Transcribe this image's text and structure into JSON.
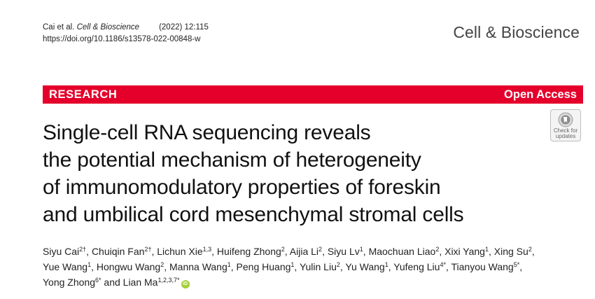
{
  "header": {
    "citation_authors": "Cai et al.",
    "citation_journal": "Cell & Bioscience",
    "citation_year_volume": "(2022) 12:115",
    "doi": "https://doi.org/10.1186/s13578-022-00848-w"
  },
  "journal_name": "Cell & Bioscience",
  "banner": {
    "section_label": "RESEARCH",
    "access_label": "Open Access",
    "color": "#e4002b"
  },
  "check_updates": {
    "line1": "Check for",
    "line2": "updates",
    "icon": "check-for-updates-icon"
  },
  "title_lines": [
    "Single-cell RNA sequencing reveals",
    "the potential mechanism of heterogeneity",
    "of immunomodulatory properties of foreskin",
    "and umbilical cord mesenchymal stromal cells"
  ],
  "authors": [
    [
      {
        "name": "Siyu Cai",
        "sup": "2†"
      },
      {
        "name": "Chuiqin Fan",
        "sup": "2†"
      },
      {
        "name": "Lichun Xie",
        "sup": "1,3"
      },
      {
        "name": "Huifeng Zhong",
        "sup": "2"
      },
      {
        "name": "Aijia Li",
        "sup": "2"
      },
      {
        "name": "Siyu Lv",
        "sup": "1"
      },
      {
        "name": "Maochuan Liao",
        "sup": "2"
      },
      {
        "name": "Xixi Yang",
        "sup": "1"
      },
      {
        "name": "Xing Su",
        "sup": "2"
      }
    ],
    [
      {
        "name": "Yue Wang",
        "sup": "1"
      },
      {
        "name": "Hongwu Wang",
        "sup": "2"
      },
      {
        "name": "Manna Wang",
        "sup": "1"
      },
      {
        "name": "Peng Huang",
        "sup": "1"
      },
      {
        "name": "Yulin Liu",
        "sup": "2"
      },
      {
        "name": "Yu Wang",
        "sup": "1"
      },
      {
        "name": "Yufeng Liu",
        "sup": "4*"
      },
      {
        "name": "Tianyou Wang",
        "sup": "5*"
      }
    ],
    [
      {
        "name": "Yong Zhong",
        "sup": "6*"
      },
      {
        "name": "Lian Ma",
        "sup": "1,2,3,7*"
      }
    ]
  ],
  "authors_conjunction": "and",
  "orcid_icon": "orcid-icon",
  "orcid_label": "iD"
}
